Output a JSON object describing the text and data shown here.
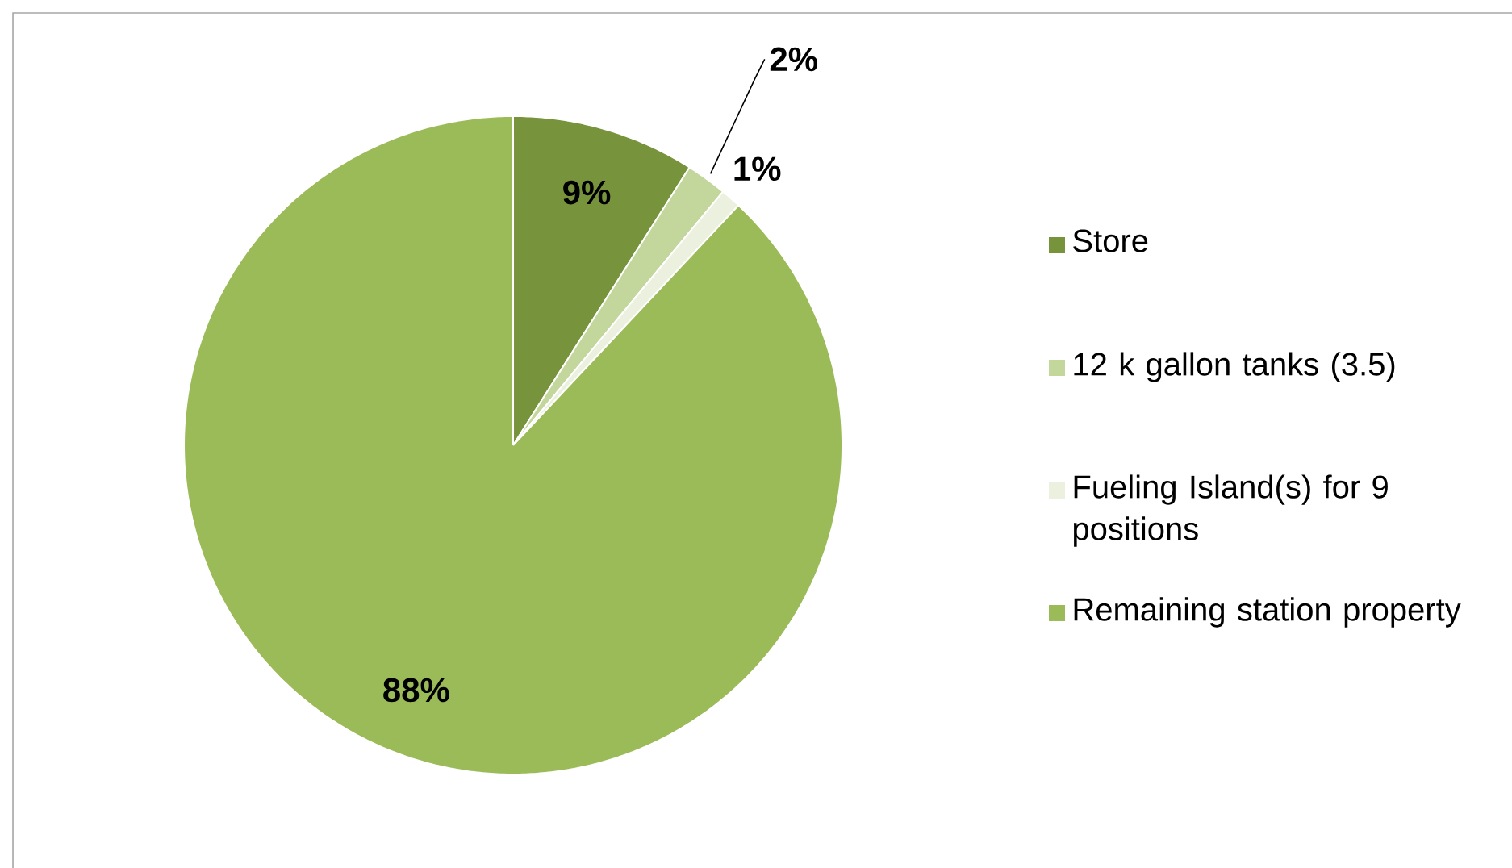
{
  "chart_data": {
    "type": "pie",
    "categories": [
      "Store",
      "12 k gallon tanks (3.5)",
      "Fueling Island(s) for 9 positions",
      "Remaining station property"
    ],
    "values": [
      9,
      2,
      1,
      88
    ],
    "colors": [
      "#77933c",
      "#c3d69b",
      "#ebf1de",
      "#9bbb59"
    ],
    "value_labels": [
      "9%",
      "2%",
      "1%",
      "88%"
    ],
    "legend": "right"
  }
}
